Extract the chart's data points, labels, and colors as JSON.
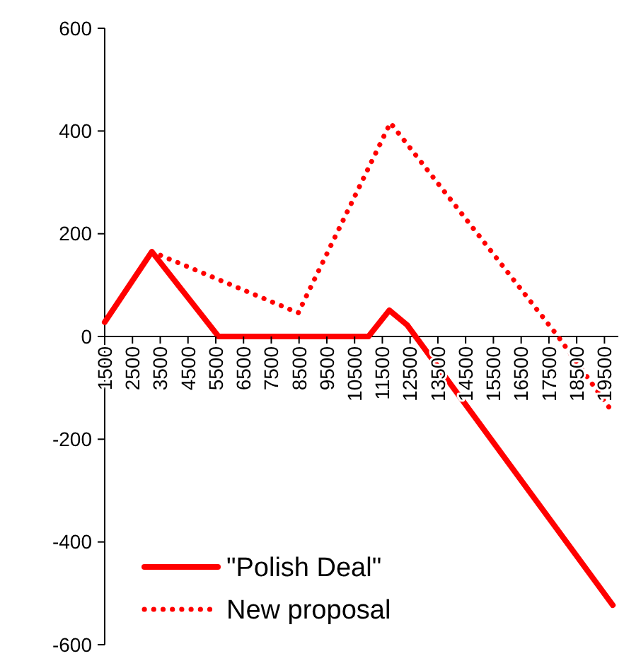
{
  "chart_data": {
    "type": "line",
    "xlim": [
      1500,
      20000
    ],
    "xticks": [
      1500,
      2500,
      3500,
      4500,
      5500,
      6500,
      7500,
      8500,
      9500,
      10500,
      11500,
      12500,
      13500,
      14500,
      15500,
      16500,
      17500,
      18500,
      19500
    ],
    "ylim": [
      -600,
      600
    ],
    "yticks": [
      -600,
      -400,
      -200,
      0,
      200,
      400,
      600
    ],
    "grid": false,
    "legend": "bottom left",
    "series": [
      {
        "name": "\"Polish Deal\"",
        "color": "#ff0000",
        "line_style": "solid",
        "x": [
          1500,
          3200,
          5600,
          11000,
          11750,
          12400,
          19800
        ],
        "values": [
          28,
          165,
          0,
          0,
          51,
          22,
          -523
        ]
      },
      {
        "name": "New proposal",
        "color": "#ff0000",
        "line_style": "dotted",
        "x": [
          3200,
          8470,
          11790,
          17830,
          19800
        ],
        "values": [
          165,
          46,
          416,
          0,
          -148
        ]
      }
    ]
  }
}
